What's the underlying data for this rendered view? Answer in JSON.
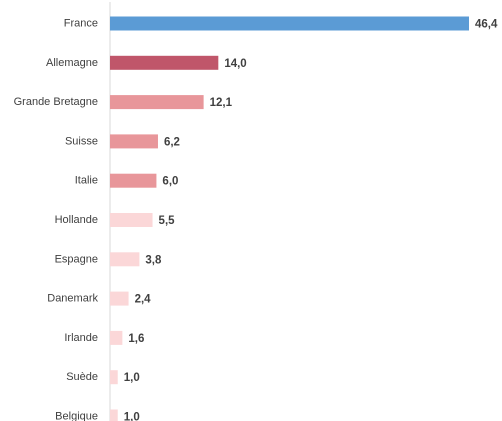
{
  "chart_data": {
    "type": "bar",
    "orientation": "horizontal",
    "categories": [
      "France",
      "Allemagne",
      "Grande Bretagne",
      "Suisse",
      "Italie",
      "Hollande",
      "Espagne",
      "Danemark",
      "Irlande",
      "Suède",
      "Belgique"
    ],
    "values": [
      46.4,
      14.0,
      12.1,
      6.2,
      6.0,
      5.5,
      3.8,
      2.4,
      1.6,
      1.0,
      1.0
    ],
    "value_labels": [
      "46,4",
      "14,0",
      "12,1",
      "6,2",
      "6,0",
      "5,5",
      "3,8",
      "2,4",
      "1,6",
      "1,0",
      "1,0"
    ],
    "bar_colors": [
      "#5b9bd5",
      "#c0566a",
      "#e8969a",
      "#e8969a",
      "#e8969a",
      "#fbd7d8",
      "#fbd7d8",
      "#fbd7d8",
      "#fbd7d8",
      "#fbd7d8",
      "#fbd7d8"
    ],
    "axis_color": "#d9d9d9",
    "xlim": [
      0,
      46.4
    ],
    "grid": false,
    "legend": "none",
    "title": "",
    "xlabel": "",
    "ylabel": ""
  }
}
